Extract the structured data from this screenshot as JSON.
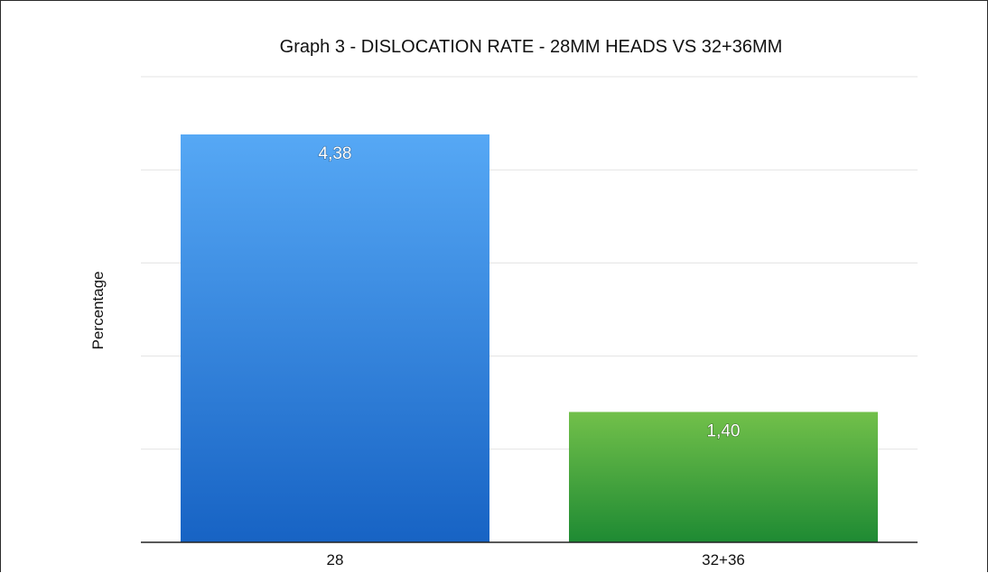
{
  "chart_data": {
    "type": "bar",
    "title": "Graph 3 - DISLOCATION RATE - 28MM HEADS VS 32+36MM",
    "xlabel": "",
    "ylabel": "Percentage",
    "categories": [
      "28",
      "32+36"
    ],
    "values": [
      4.38,
      1.4
    ],
    "value_labels": [
      "4,38",
      "1,40"
    ],
    "ylim": [
      0,
      5
    ],
    "grid": true,
    "legend": "none",
    "colors": {
      "bar_28_top": "#56a8f5",
      "bar_28_bottom": "#1763c4",
      "bar_32_36_top": "#72c04a",
      "bar_32_36_bottom": "#1e8a33",
      "gridline": "#e3e3e3",
      "axis": "#222222"
    }
  }
}
